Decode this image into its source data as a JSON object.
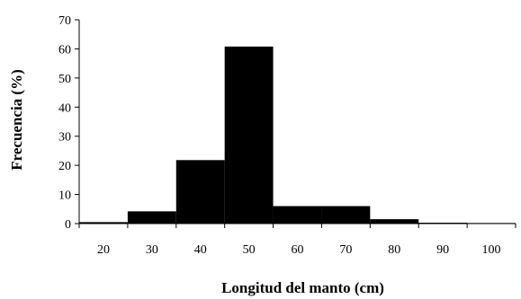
{
  "chart_data": {
    "type": "bar",
    "title": "",
    "xlabel": "Longitud del manto (cm)",
    "ylabel": "Frecuencia (%)",
    "categories": [
      "20",
      "30",
      "40",
      "50",
      "60",
      "70",
      "80",
      "90",
      "100"
    ],
    "values": [
      0.5,
      4.2,
      21.8,
      60.8,
      6.0,
      6.0,
      1.5,
      0.3,
      0.2
    ],
    "ylim": [
      0,
      70
    ],
    "yticks": [
      "0",
      "10",
      "20",
      "30",
      "40",
      "50",
      "60",
      "70"
    ],
    "bar_color": "#000000",
    "grid": false,
    "legend": "none"
  }
}
